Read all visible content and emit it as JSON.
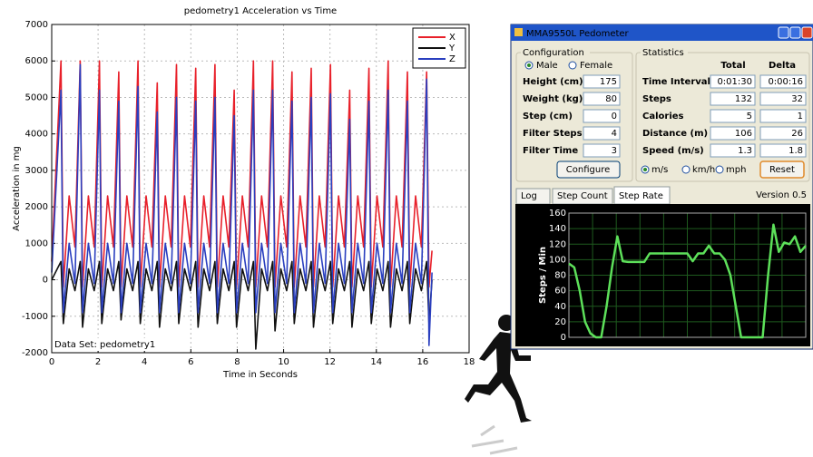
{
  "chart_data": [
    {
      "type": "line",
      "title": "pedometry1 Acceleration vs Time",
      "x_label": "Time in Seconds",
      "y_label": "Acceleration in mg",
      "annotation": "Data Set: pedometry1",
      "xlim": [
        0,
        18
      ],
      "xticks": [
        0,
        2,
        4,
        6,
        8,
        10,
        12,
        14,
        16,
        18
      ],
      "ylim": [
        -2000,
        7000
      ],
      "yticks": [
        -2000,
        -1000,
        0,
        1000,
        2000,
        3000,
        4000,
        5000,
        6000,
        7000
      ],
      "grid": true,
      "legend": "upper right",
      "x": [
        0,
        0.4,
        0.5,
        0.75,
        1.0,
        1.23,
        1.33,
        1.58,
        1.83,
        2.06,
        2.16,
        2.41,
        2.66,
        2.89,
        2.99,
        3.24,
        3.49,
        3.72,
        3.82,
        4.07,
        4.32,
        4.55,
        4.65,
        4.9,
        5.15,
        5.38,
        5.48,
        5.73,
        5.98,
        6.21,
        6.31,
        6.56,
        6.81,
        7.04,
        7.14,
        7.39,
        7.64,
        7.87,
        7.97,
        8.22,
        8.47,
        8.7,
        8.8,
        9.05,
        9.3,
        9.53,
        9.63,
        9.88,
        10.13,
        10.36,
        10.46,
        10.71,
        10.96,
        11.19,
        11.29,
        11.54,
        11.79,
        12.02,
        12.12,
        12.37,
        12.62,
        12.85,
        12.95,
        13.2,
        13.45,
        13.68,
        13.78,
        14.03,
        14.28,
        14.51,
        14.61,
        14.86,
        15.11,
        15.34,
        15.44,
        15.69,
        15.94,
        16.17,
        16.27,
        16.4
      ],
      "series": [
        {
          "name": "X",
          "color": "#e8202a",
          "values": [
            500,
            6000,
            -200,
            2300,
            900,
            6000,
            -200,
            2300,
            900,
            6000,
            -200,
            2300,
            900,
            5700,
            -200,
            2300,
            900,
            6000,
            -200,
            2300,
            900,
            5400,
            -200,
            2300,
            900,
            5900,
            -200,
            2300,
            900,
            5800,
            -200,
            2300,
            900,
            5900,
            -200,
            2300,
            900,
            5200,
            -200,
            2300,
            900,
            6000,
            -200,
            2300,
            900,
            6000,
            -200,
            2300,
            900,
            5700,
            -200,
            2300,
            900,
            5800,
            -200,
            2300,
            900,
            5900,
            -200,
            2300,
            900,
            5200,
            -200,
            2300,
            900,
            5800,
            -200,
            2300,
            900,
            6000,
            -200,
            2300,
            900,
            5700,
            -200,
            2300,
            900,
            5700,
            -200,
            800
          ]
        },
        {
          "name": "Y",
          "color": "#111111",
          "values": [
            0,
            500,
            -1200,
            300,
            -300,
            500,
            -1300,
            300,
            -300,
            500,
            -1200,
            300,
            -300,
            500,
            -1100,
            300,
            -300,
            500,
            -1200,
            300,
            -300,
            500,
            -1300,
            300,
            -300,
            500,
            -1200,
            300,
            -300,
            500,
            -1300,
            300,
            -300,
            500,
            -1200,
            300,
            -300,
            500,
            -1300,
            300,
            -300,
            500,
            -1900,
            300,
            -300,
            500,
            -1400,
            300,
            -300,
            500,
            -1200,
            300,
            -300,
            500,
            -1300,
            300,
            -300,
            500,
            -1200,
            300,
            -300,
            500,
            -1300,
            300,
            -300,
            500,
            -1200,
            300,
            -300,
            500,
            -1300,
            300,
            -300,
            500,
            -1200,
            300,
            -300,
            500,
            -1200,
            0
          ]
        },
        {
          "name": "Z",
          "color": "#2a3fbf",
          "values": [
            200,
            5200,
            -900,
            1000,
            -100,
            5900,
            -900,
            1000,
            -100,
            5200,
            -900,
            1000,
            -100,
            4900,
            -900,
            1000,
            -100,
            5300,
            -900,
            1000,
            -100,
            4600,
            -900,
            1000,
            -100,
            5000,
            -900,
            1000,
            -100,
            4900,
            -900,
            1000,
            -100,
            5000,
            -900,
            1000,
            -100,
            4500,
            -900,
            1000,
            -100,
            5200,
            -900,
            1000,
            -100,
            5200,
            -900,
            1000,
            -100,
            4900,
            -900,
            1000,
            -100,
            5000,
            -900,
            1000,
            -100,
            5100,
            -900,
            1000,
            -100,
            4400,
            -900,
            1000,
            -100,
            4900,
            -900,
            1000,
            -100,
            5200,
            -900,
            1000,
            -100,
            4900,
            -900,
            1000,
            -100,
            5500,
            -1800,
            200
          ]
        }
      ]
    },
    {
      "type": "line",
      "y_label": "Steps / Min",
      "ylim": [
        0,
        160
      ],
      "yticks": [
        0,
        20,
        40,
        60,
        80,
        100,
        120,
        140,
        160
      ],
      "grid": true,
      "color": "#5de05a",
      "values": [
        95,
        90,
        60,
        20,
        5,
        0,
        0,
        40,
        90,
        130,
        98,
        97,
        97,
        97,
        97,
        108,
        108,
        108,
        108,
        108,
        108,
        108,
        108,
        98,
        108,
        108,
        118,
        108,
        108,
        100,
        80,
        40,
        0,
        0,
        0,
        0,
        0,
        80,
        145,
        110,
        122,
        120,
        130,
        110,
        118
      ]
    }
  ],
  "window": {
    "title": "MMA9550L Pedometer",
    "configuration": {
      "title": "Configuration",
      "gender_options": [
        "Male",
        "Female"
      ],
      "fields": [
        {
          "label": "Height (cm)",
          "value": 175
        },
        {
          "label": "Weight (kg)",
          "value": 80
        },
        {
          "label": "Step (cm)",
          "value": 0
        },
        {
          "label": "Filter Steps",
          "value": 4
        },
        {
          "label": "Filter Time",
          "value": 3
        }
      ],
      "button": "Configure"
    },
    "statistics": {
      "title": "Statistics",
      "columns": [
        "Total",
        "Delta"
      ],
      "rows": [
        {
          "label": "Time Interval",
          "total": "0:01:30",
          "delta": "0:00:16"
        },
        {
          "label": "Steps",
          "total": 132,
          "delta": 32
        },
        {
          "label": "Calories",
          "total": 5,
          "delta": 1
        },
        {
          "label": "Distance (m)",
          "total": 106,
          "delta": 26
        },
        {
          "label": "Speed (m/s)",
          "total": 1.3,
          "delta": 1.8
        }
      ],
      "unit_options": [
        "m/s",
        "km/h",
        "mph"
      ],
      "button": "Reset"
    },
    "tabs": [
      "Log",
      "Step Count",
      "Step Rate"
    ],
    "version": "Version 0.5"
  }
}
